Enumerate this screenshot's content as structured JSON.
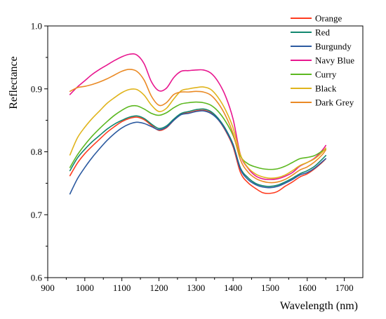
{
  "chart_data": {
    "type": "line",
    "title": "",
    "xlabel": "Wavelength (nm)",
    "ylabel": "Reflectance",
    "xlim": [
      900,
      1750
    ],
    "ylim": [
      0.6,
      1.0
    ],
    "xticks": [
      900,
      1000,
      1100,
      1200,
      1300,
      1400,
      1500,
      1600,
      1700
    ],
    "xtick_labels": [
      "900",
      "1000",
      "1100",
      "1200",
      "1300",
      "1400",
      "1500",
      "1600",
      "1700"
    ],
    "yticks": [
      0.6,
      0.7,
      0.8,
      0.9,
      1.0
    ],
    "ytick_labels": [
      "0.6",
      "0.7",
      "0.8",
      "0.9",
      "1.0"
    ],
    "grid": false,
    "legend_position": "top-right",
    "x": [
      960,
      980,
      1000,
      1020,
      1040,
      1060,
      1080,
      1100,
      1120,
      1140,
      1160,
      1180,
      1200,
      1220,
      1240,
      1260,
      1280,
      1300,
      1320,
      1340,
      1360,
      1380,
      1400,
      1420,
      1440,
      1460,
      1480,
      1500,
      1520,
      1540,
      1560,
      1580,
      1600,
      1620,
      1640,
      1650
    ],
    "series": [
      {
        "name": "Orange",
        "color": "#ff3b1f",
        "values": [
          0.762,
          0.782,
          0.797,
          0.809,
          0.82,
          0.831,
          0.84,
          0.848,
          0.853,
          0.855,
          0.851,
          0.842,
          0.834,
          0.838,
          0.85,
          0.86,
          0.862,
          0.865,
          0.866,
          0.862,
          0.851,
          0.833,
          0.808,
          0.767,
          0.751,
          0.742,
          0.735,
          0.734,
          0.737,
          0.745,
          0.752,
          0.76,
          0.765,
          0.773,
          0.783,
          0.789
        ]
      },
      {
        "name": "Red",
        "color": "#12876f",
        "values": [
          0.77,
          0.79,
          0.804,
          0.816,
          0.826,
          0.836,
          0.844,
          0.85,
          0.855,
          0.857,
          0.853,
          0.844,
          0.837,
          0.841,
          0.852,
          0.861,
          0.864,
          0.867,
          0.868,
          0.864,
          0.853,
          0.836,
          0.812,
          0.774,
          0.759,
          0.75,
          0.746,
          0.745,
          0.747,
          0.752,
          0.758,
          0.765,
          0.77,
          0.777,
          0.788,
          0.794
        ]
      },
      {
        "name": "Burgundy",
        "color": "#2c5aa0",
        "values": [
          0.733,
          0.757,
          0.775,
          0.791,
          0.805,
          0.818,
          0.829,
          0.838,
          0.844,
          0.847,
          0.845,
          0.84,
          0.835,
          0.839,
          0.85,
          0.859,
          0.861,
          0.864,
          0.865,
          0.861,
          0.851,
          0.834,
          0.81,
          0.772,
          0.756,
          0.748,
          0.744,
          0.743,
          0.745,
          0.75,
          0.756,
          0.763,
          0.767,
          0.774,
          0.784,
          0.789
        ]
      },
      {
        "name": "Navy Blue",
        "color": "#e8178f",
        "values": [
          0.891,
          0.903,
          0.913,
          0.923,
          0.931,
          0.938,
          0.945,
          0.951,
          0.955,
          0.954,
          0.94,
          0.911,
          0.897,
          0.901,
          0.918,
          0.928,
          0.929,
          0.93,
          0.93,
          0.925,
          0.911,
          0.888,
          0.852,
          0.795,
          0.774,
          0.762,
          0.757,
          0.756,
          0.757,
          0.761,
          0.767,
          0.777,
          0.783,
          0.79,
          0.802,
          0.81
        ]
      },
      {
        "name": "Curry",
        "color": "#5cb820",
        "values": [
          0.775,
          0.795,
          0.811,
          0.825,
          0.837,
          0.848,
          0.858,
          0.866,
          0.872,
          0.873,
          0.868,
          0.861,
          0.858,
          0.862,
          0.87,
          0.876,
          0.878,
          0.879,
          0.878,
          0.874,
          0.864,
          0.848,
          0.826,
          0.793,
          0.781,
          0.776,
          0.773,
          0.772,
          0.773,
          0.777,
          0.783,
          0.789,
          0.791,
          0.794,
          0.801,
          0.804
        ]
      },
      {
        "name": "Black",
        "color": "#e0b41c",
        "values": [
          0.795,
          0.822,
          0.839,
          0.853,
          0.865,
          0.877,
          0.886,
          0.894,
          0.899,
          0.899,
          0.89,
          0.874,
          0.864,
          0.869,
          0.884,
          0.897,
          0.9,
          0.902,
          0.903,
          0.899,
          0.886,
          0.866,
          0.838,
          0.795,
          0.775,
          0.765,
          0.76,
          0.758,
          0.759,
          0.763,
          0.77,
          0.778,
          0.783,
          0.789,
          0.799,
          0.806
        ]
      },
      {
        "name": "Dark Grey",
        "color": "#ea8a25",
        "values": [
          0.896,
          0.902,
          0.904,
          0.907,
          0.911,
          0.916,
          0.922,
          0.928,
          0.931,
          0.928,
          0.914,
          0.888,
          0.874,
          0.878,
          0.891,
          0.895,
          0.895,
          0.896,
          0.895,
          0.89,
          0.877,
          0.857,
          0.829,
          0.787,
          0.768,
          0.758,
          0.753,
          0.751,
          0.752,
          0.756,
          0.763,
          0.771,
          0.776,
          0.784,
          0.795,
          0.803
        ]
      }
    ]
  }
}
